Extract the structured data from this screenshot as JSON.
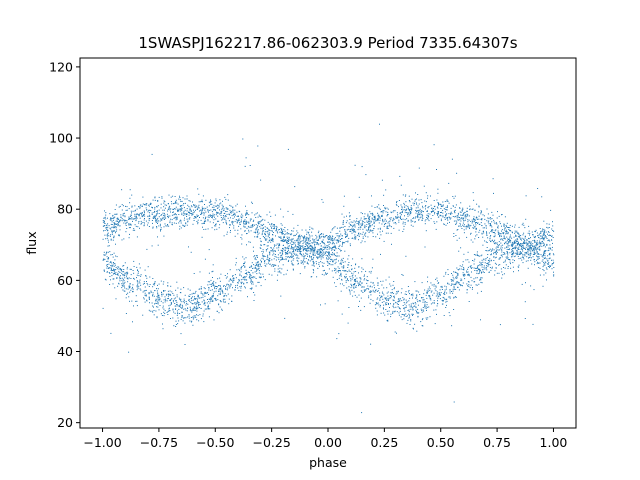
{
  "chart_data": {
    "type": "scatter",
    "title": "1SWASPJ162217.86-062303.9 Period 7335.64307s",
    "xlabel": "phase",
    "ylabel": "flux",
    "xlim": [
      -1.1,
      1.1
    ],
    "ylim": [
      18.5,
      122.5
    ],
    "x_ticks": [
      -1.0,
      -0.75,
      -0.5,
      -0.25,
      0.0,
      0.25,
      0.5,
      0.75,
      1.0
    ],
    "x_tick_labels": [
      "−1.00",
      "−0.75",
      "−0.50",
      "−0.25",
      "0.00",
      "0.25",
      "0.50",
      "0.75",
      "1.00"
    ],
    "y_ticks": [
      20,
      40,
      60,
      80,
      100,
      120
    ],
    "y_tick_labels": [
      "20",
      "40",
      "60",
      "80",
      "100",
      "120"
    ],
    "grid": false,
    "marker_color": "#1f77b4",
    "series": [
      {
        "x": [
          -1.0,
          -0.875,
          -0.75,
          -0.625,
          -0.5,
          -0.375,
          -0.25,
          -0.125,
          0.0,
          0.125,
          0.25,
          0.375,
          0.5,
          0.625,
          0.75,
          0.875,
          1.0
        ],
        "y": [
          75,
          77.8,
          79,
          79.6,
          79,
          77,
          73.5,
          69.5,
          70.5,
          74.5,
          78,
          79.6,
          79,
          76.8,
          73.5,
          69.5,
          73
        ],
        "spread": 2.2
      },
      {
        "x": [
          -1.0,
          -0.875,
          -0.75,
          -0.625,
          -0.5,
          -0.375,
          -0.25,
          -0.125,
          0.0,
          0.125,
          0.25,
          0.375,
          0.5,
          0.625,
          0.75,
          0.875,
          1.0
        ],
        "y": [
          65,
          60,
          55,
          52.5,
          56,
          61.5,
          66.5,
          69.5,
          66,
          59.5,
          55,
          52.5,
          56,
          61.5,
          67,
          70,
          66
        ],
        "spread": 2.6
      }
    ]
  }
}
